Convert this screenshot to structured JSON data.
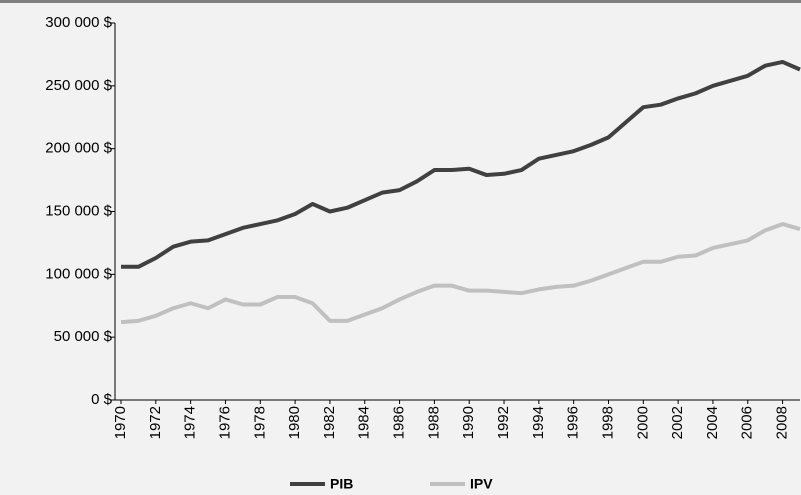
{
  "chart_data": {
    "type": "line",
    "x": [
      1970,
      1971,
      1972,
      1973,
      1974,
      1975,
      1976,
      1977,
      1978,
      1979,
      1980,
      1981,
      1982,
      1983,
      1984,
      1985,
      1986,
      1987,
      1988,
      1989,
      1990,
      1991,
      1992,
      1993,
      1994,
      1995,
      1996,
      1997,
      1998,
      1999,
      2000,
      2001,
      2002,
      2003,
      2004,
      2005,
      2006,
      2007,
      2008,
      2009
    ],
    "xlim": [
      1970,
      2009
    ],
    "xticks": [
      1970,
      1972,
      1974,
      1976,
      1978,
      1980,
      1982,
      1984,
      1986,
      1988,
      1990,
      1992,
      1994,
      1996,
      1998,
      2000,
      2002,
      2004,
      2006,
      2008
    ],
    "ylim": [
      0,
      300000
    ],
    "yticks": [
      {
        "value": 0,
        "label": "0 $"
      },
      {
        "value": 50000,
        "label": "50 000 $"
      },
      {
        "value": 100000,
        "label": "100 000 $"
      },
      {
        "value": 150000,
        "label": "150 000 $"
      },
      {
        "value": 200000,
        "label": "200 000 $"
      },
      {
        "value": 250000,
        "label": "250 000 $"
      },
      {
        "value": 300000,
        "label": "300 000 $"
      }
    ],
    "grid": false,
    "legend": "bottom",
    "series": [
      {
        "name": "PIB",
        "color": "#404040",
        "values": [
          106000,
          106000,
          113000,
          122000,
          126000,
          127000,
          132000,
          137000,
          140000,
          143000,
          148000,
          156000,
          150000,
          153000,
          159000,
          165000,
          167000,
          174000,
          183000,
          183000,
          184000,
          179000,
          180000,
          183000,
          192000,
          195000,
          198000,
          203000,
          209000,
          221000,
          233000,
          235000,
          240000,
          244000,
          250000,
          254000,
          258000,
          266000,
          269000,
          263000
        ]
      },
      {
        "name": "IPV",
        "color": "#c0c0c0",
        "values": [
          62000,
          63000,
          67000,
          73000,
          77000,
          73000,
          80000,
          76000,
          76000,
          82000,
          82000,
          77000,
          63000,
          63000,
          68000,
          73000,
          80000,
          86000,
          91000,
          91000,
          87000,
          87000,
          86000,
          85000,
          88000,
          90000,
          91000,
          95000,
          100000,
          105000,
          110000,
          110000,
          114000,
          115000,
          121000,
          124000,
          127000,
          135000,
          140000,
          136000
        ]
      }
    ]
  }
}
